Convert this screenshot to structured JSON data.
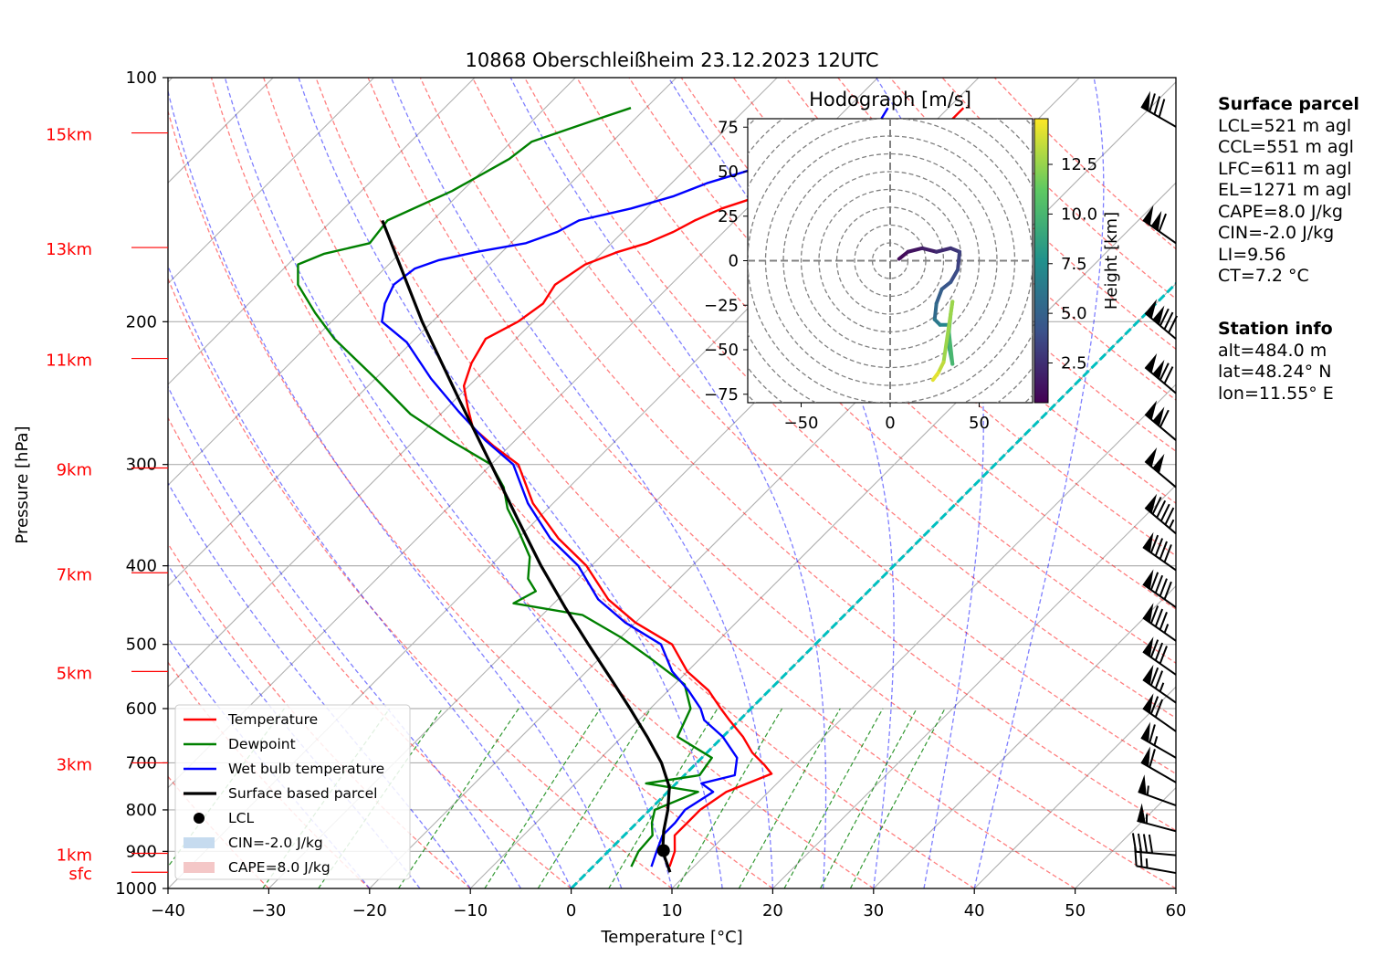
{
  "chart_data": {
    "type": "line",
    "title": "10868 Oberschleißheim 23.12.2023 12UTC",
    "xlabel": "Temperature [°C]",
    "ylabel": "Pressure [hPa]",
    "xlim": [
      -40,
      60
    ],
    "ylim": [
      1000,
      100
    ],
    "y_scale": "log",
    "skew": "skew-T (isotherms tilted 45°)",
    "x_ticks": [
      -40,
      -30,
      -20,
      -10,
      0,
      10,
      20,
      30,
      40,
      50,
      60
    ],
    "y_ticks": [
      100,
      200,
      300,
      400,
      500,
      600,
      700,
      800,
      900,
      1000
    ],
    "height_labels": [
      {
        "label": "sfc",
        "p": 955
      },
      {
        "label": "1km",
        "p": 905
      },
      {
        "label": "3km",
        "p": 700
      },
      {
        "label": "5km",
        "p": 540
      },
      {
        "label": "7km",
        "p": 408
      },
      {
        "label": "9km",
        "p": 303
      },
      {
        "label": "11km",
        "p": 222
      },
      {
        "label": "13km",
        "p": 162
      },
      {
        "label": "15km",
        "p": 117
      }
    ],
    "grid": true,
    "legend_position": "bottom-left",
    "series": [
      {
        "name": "Temperature",
        "color": "#ff0000",
        "points": [
          [
            7.6,
            940
          ],
          [
            6.6,
            900
          ],
          [
            5.0,
            860
          ],
          [
            5.0,
            830
          ],
          [
            5.0,
            800
          ],
          [
            5.8,
            760
          ],
          [
            8.5,
            722
          ],
          [
            7.0,
            705
          ],
          [
            4.5,
            680
          ],
          [
            2.0,
            650
          ],
          [
            -1.0,
            620
          ],
          [
            -3.0,
            600
          ],
          [
            -6.0,
            570
          ],
          [
            -10.0,
            540
          ],
          [
            -14.2,
            500
          ],
          [
            -20.0,
            470
          ],
          [
            -25.0,
            440
          ],
          [
            -30.5,
            400
          ],
          [
            -36.0,
            370
          ],
          [
            -42.0,
            335
          ],
          [
            -47.3,
            300
          ],
          [
            -51.5,
            285
          ],
          [
            -55.5,
            270
          ],
          [
            -58.0,
            255
          ],
          [
            -60.5,
            240
          ],
          [
            -62.0,
            225
          ],
          [
            -63.0,
            210
          ],
          [
            -61.5,
            200
          ],
          [
            -60.8,
            190
          ],
          [
            -61.5,
            180
          ],
          [
            -60.5,
            170
          ],
          [
            -58.5,
            164
          ],
          [
            -56.5,
            160
          ],
          [
            -55.0,
            155
          ],
          [
            -54.0,
            150
          ],
          [
            -52.5,
            145
          ],
          [
            -50.0,
            140
          ],
          [
            -48.5,
            135
          ],
          [
            -46.5,
            130
          ],
          [
            -44.0,
            125
          ],
          [
            -41.5,
            120
          ],
          [
            -39.5,
            116
          ],
          [
            -38.5,
            113
          ],
          [
            -38.5,
            109
          ]
        ]
      },
      {
        "name": "Dewpoint",
        "color": "#008000",
        "points": [
          [
            3.8,
            940
          ],
          [
            3.0,
            900
          ],
          [
            2.8,
            860
          ],
          [
            1.5,
            830
          ],
          [
            0.5,
            800
          ],
          [
            3.0,
            760
          ],
          [
            -3.0,
            742
          ],
          [
            1.5,
            725
          ],
          [
            1.0,
            690
          ],
          [
            -4.5,
            650
          ],
          [
            -6.0,
            600
          ],
          [
            -9.0,
            560
          ],
          [
            -15.0,
            520
          ],
          [
            -20.0,
            490
          ],
          [
            -26.0,
            460
          ],
          [
            -34.0,
            445
          ],
          [
            -33.0,
            430
          ],
          [
            -35.0,
            415
          ],
          [
            -37.0,
            390
          ],
          [
            -41.0,
            360
          ],
          [
            -44.0,
            340
          ],
          [
            -46.5,
            320
          ],
          [
            -50.0,
            300
          ],
          [
            -56.5,
            280
          ],
          [
            -63.0,
            260
          ],
          [
            -70.0,
            235
          ],
          [
            -78.0,
            210
          ],
          [
            -82.5,
            195
          ],
          [
            -87.0,
            180
          ],
          [
            -89.0,
            170
          ],
          [
            -87.5,
            165
          ],
          [
            -84.0,
            160
          ],
          [
            -84.5,
            150
          ],
          [
            -81.0,
            138
          ],
          [
            -78.5,
            126
          ],
          [
            -78.0,
            120
          ],
          [
            -74.0,
            113
          ],
          [
            -71.5,
            109
          ]
        ]
      },
      {
        "name": "Wet bulb temperature",
        "color": "#0000ff",
        "points": [
          [
            5.8,
            940
          ],
          [
            4.8,
            900
          ],
          [
            3.8,
            860
          ],
          [
            3.8,
            830
          ],
          [
            3.5,
            800
          ],
          [
            4.5,
            760
          ],
          [
            2.5,
            742
          ],
          [
            5.0,
            725
          ],
          [
            3.5,
            690
          ],
          [
            0.0,
            650
          ],
          [
            -3.5,
            620
          ],
          [
            -5.0,
            600
          ],
          [
            -8.0,
            570
          ],
          [
            -11.5,
            540
          ],
          [
            -15.3,
            500
          ],
          [
            -21.0,
            470
          ],
          [
            -26.0,
            440
          ],
          [
            -31.3,
            400
          ],
          [
            -36.8,
            370
          ],
          [
            -42.5,
            335
          ],
          [
            -47.8,
            300
          ],
          [
            -53.0,
            280
          ],
          [
            -58.5,
            258
          ],
          [
            -64.5,
            235
          ],
          [
            -70.5,
            212
          ],
          [
            -75.0,
            200
          ],
          [
            -76.5,
            190
          ],
          [
            -77.5,
            180
          ],
          [
            -77.0,
            172
          ],
          [
            -75.5,
            168
          ],
          [
            -72.5,
            164
          ],
          [
            -68.5,
            160
          ],
          [
            -66.5,
            155
          ],
          [
            -65.5,
            150
          ],
          [
            -61.5,
            145
          ],
          [
            -58.5,
            140
          ],
          [
            -56.5,
            135
          ],
          [
            -53.5,
            130
          ],
          [
            -50.5,
            125
          ],
          [
            -48.0,
            120
          ],
          [
            -46.0,
            116
          ],
          [
            -45.5,
            113
          ],
          [
            -46.0,
            109
          ]
        ]
      },
      {
        "name": "Surface based parcel",
        "color": "#000000",
        "points": [
          [
            8.2,
            955
          ],
          [
            5.4,
            900
          ],
          [
            3.5,
            850
          ],
          [
            1.8,
            800
          ],
          [
            -0.3,
            750
          ],
          [
            -3.5,
            700
          ],
          [
            -7.5,
            650
          ],
          [
            -12.0,
            600
          ],
          [
            -17.0,
            550
          ],
          [
            -22.5,
            500
          ],
          [
            -28.5,
            450
          ],
          [
            -35.0,
            400
          ],
          [
            -42.0,
            350
          ],
          [
            -50.0,
            300
          ],
          [
            -59.5,
            250
          ],
          [
            -71.0,
            200
          ],
          [
            -85.0,
            150
          ]
        ]
      },
      {
        "name": "LCL",
        "color": "#000000",
        "points": [
          [
            5.4,
            898
          ]
        ]
      },
      {
        "name": "CIN=-2.0 J/kg",
        "color": "#c6dbef",
        "points": []
      },
      {
        "name": "CAPE=8.0 J/kg",
        "color": "#f4c7c7",
        "points": []
      }
    ],
    "zero_isotherm_color": "#00bfbf",
    "dry_adiabat_color": "#ff0000",
    "moist_adiabat_color": "#0000ff",
    "mixing_ratio_color": "#008000",
    "wind_barbs": [
      {
        "p": 957,
        "speed_kt": 25,
        "dir_deg": 280
      },
      {
        "p": 910,
        "speed_kt": 40,
        "dir_deg": 275
      },
      {
        "p": 850,
        "speed_kt": 55,
        "dir_deg": 285
      },
      {
        "p": 790,
        "speed_kt": 55,
        "dir_deg": 290
      },
      {
        "p": 740,
        "speed_kt": 60,
        "dir_deg": 300
      },
      {
        "p": 690,
        "speed_kt": 65,
        "dir_deg": 300
      },
      {
        "p": 640,
        "speed_kt": 70,
        "dir_deg": 305
      },
      {
        "p": 590,
        "speed_kt": 75,
        "dir_deg": 305
      },
      {
        "p": 545,
        "speed_kt": 80,
        "dir_deg": 305
      },
      {
        "p": 495,
        "speed_kt": 85,
        "dir_deg": 305
      },
      {
        "p": 450,
        "speed_kt": 90,
        "dir_deg": 305
      },
      {
        "p": 405,
        "speed_kt": 90,
        "dir_deg": 305
      },
      {
        "p": 365,
        "speed_kt": 95,
        "dir_deg": 310
      },
      {
        "p": 320,
        "speed_kt": 100,
        "dir_deg": 310
      },
      {
        "p": 280,
        "speed_kt": 110,
        "dir_deg": 310
      },
      {
        "p": 245,
        "speed_kt": 120,
        "dir_deg": 310
      },
      {
        "p": 210,
        "speed_kt": 130,
        "dir_deg": 310
      },
      {
        "p": 160,
        "speed_kt": 110,
        "dir_deg": 305
      },
      {
        "p": 115,
        "speed_kt": 80,
        "dir_deg": 300
      }
    ],
    "hodograph": {
      "title": "Hodograph [m/s]",
      "colorbar_label": "Height [km]",
      "colorbar_ticks": [
        2.5,
        5.0,
        7.5,
        10.0,
        12.5
      ],
      "colorbar_range": [
        0.5,
        14.8
      ],
      "axis_ticks": [
        -75,
        -50,
        -25,
        0,
        25,
        50,
        75
      ],
      "axis_ticks_x": [
        -50,
        0,
        50
      ],
      "lim": [
        -80,
        80
      ],
      "points": [
        [
          5,
          1,
          0.5
        ],
        [
          10,
          5,
          0.9
        ],
        [
          18,
          7,
          1.3
        ],
        [
          26,
          5,
          1.8
        ],
        [
          34,
          7,
          2.3
        ],
        [
          39,
          5,
          2.8
        ],
        [
          38,
          -5,
          3.3
        ],
        [
          34,
          -12,
          3.8
        ],
        [
          29,
          -16,
          4.3
        ],
        [
          26,
          -24,
          4.8
        ],
        [
          25,
          -33,
          5.4
        ],
        [
          28,
          -36,
          6.2
        ],
        [
          33,
          -36,
          7.0
        ],
        [
          33,
          -48,
          8.0
        ],
        [
          35,
          -58,
          9.0
        ],
        [
          33,
          -40,
          10.0
        ],
        [
          34,
          -30,
          11.0
        ],
        [
          35,
          -23,
          11.8
        ],
        [
          30,
          -57,
          12.6
        ],
        [
          27,
          -63,
          13.4
        ],
        [
          24,
          -67,
          14.2
        ]
      ]
    }
  },
  "surface_parcel": {
    "title": "Surface parcel",
    "lines": [
      "LCL=521 m agl",
      "CCL=551 m agl",
      "LFC=611 m agl",
      "EL=1271 m agl",
      "CAPE=8.0 J/kg",
      "CIN=-2.0 J/kg",
      "LI=9.56",
      "CT=7.2 °C"
    ]
  },
  "station_info": {
    "title": "Station info",
    "lines": [
      "alt=484.0 m",
      "lat=48.24° N",
      "lon=11.55° E"
    ]
  }
}
